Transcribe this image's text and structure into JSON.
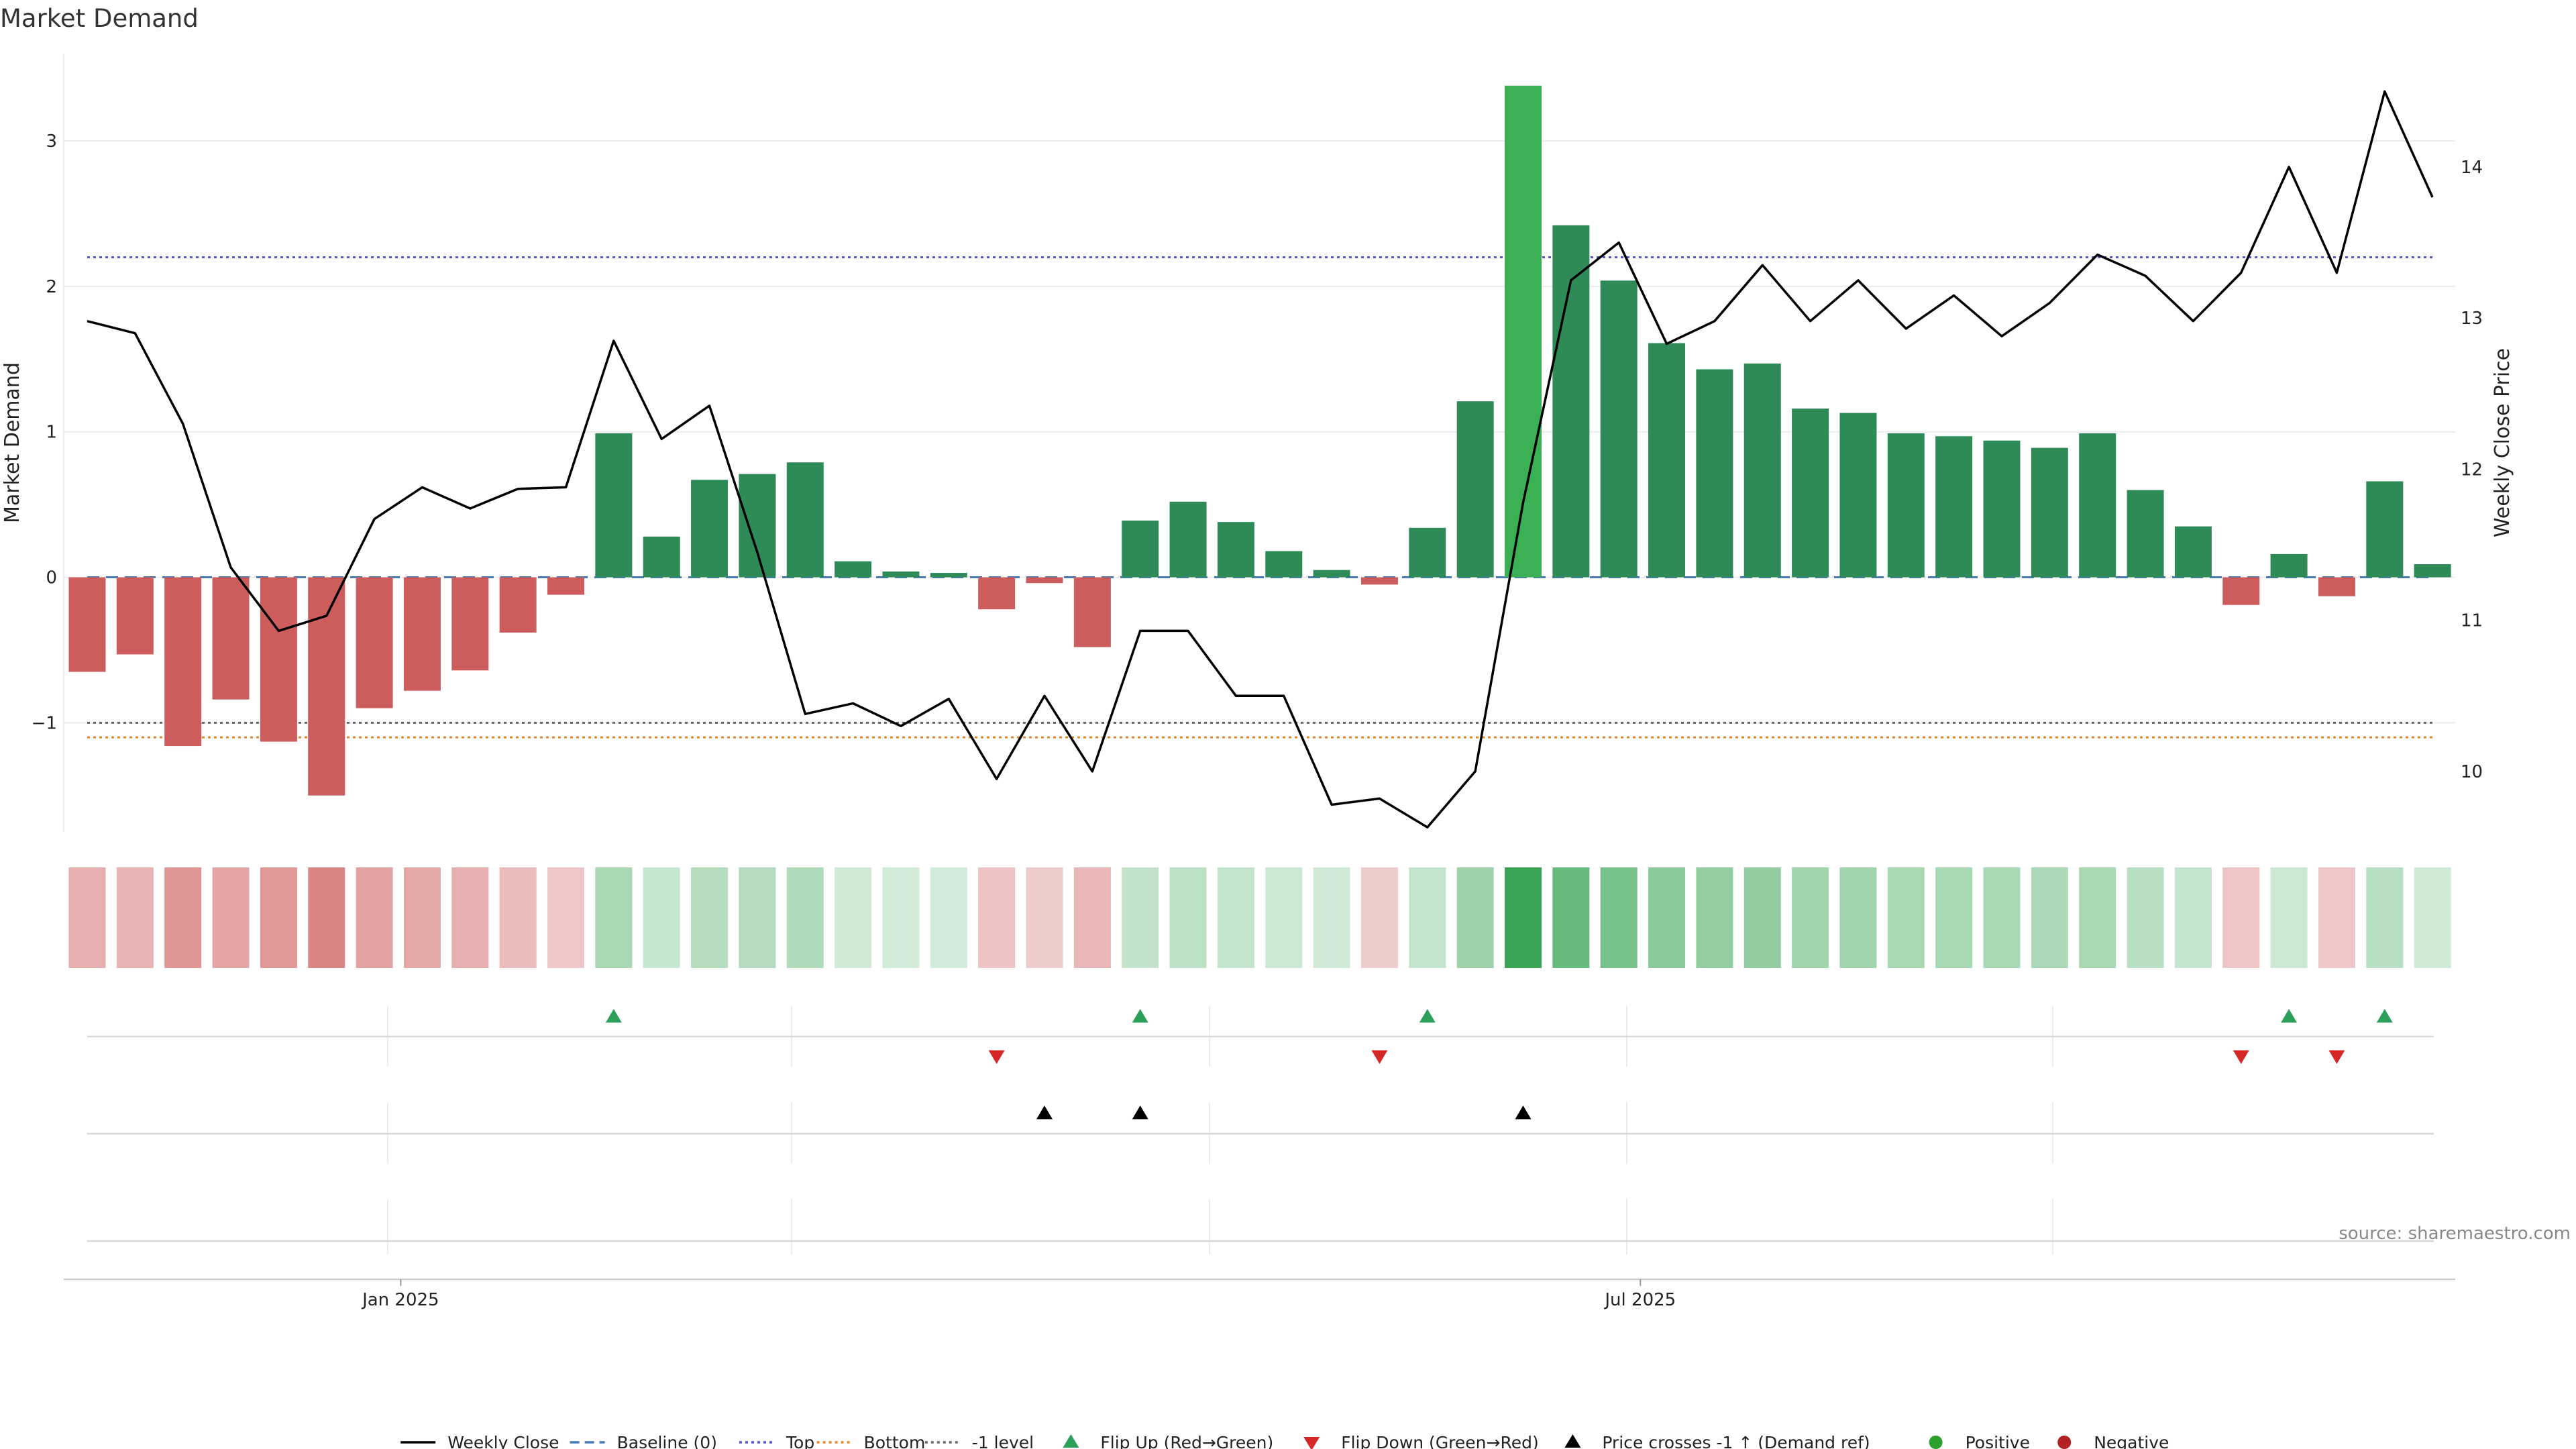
{
  "chart_data": {
    "type": "bar",
    "title": "Market Demand",
    "ylabel_left": "Market Demand",
    "ylabel_right": "Weekly Close Price",
    "source": "source: sharemaestro.com",
    "ylim_left": [
      -1.75,
      3.6
    ],
    "ylim_right": [
      9.6,
      14.75
    ],
    "left_ticks": [
      {
        "v": 3,
        "label": "3"
      },
      {
        "v": 2,
        "label": "2"
      },
      {
        "v": 1,
        "label": "1"
      },
      {
        "v": 0,
        "label": "0"
      },
      {
        "v": -1,
        "label": "−1"
      }
    ],
    "right_ticks": [
      {
        "v": 14,
        "label": "14"
      },
      {
        "v": 13,
        "label": "13"
      },
      {
        "v": 12,
        "label": "12"
      },
      {
        "v": 11,
        "label": "11"
      },
      {
        "v": 10,
        "label": "10"
      }
    ],
    "x_ticks": [
      {
        "index": 6.55,
        "label": "Jan 2025"
      },
      {
        "index": 32.45,
        "label": "Jul 2025"
      }
    ],
    "reference_lines": {
      "baseline": 0,
      "top": 2.2,
      "bottom": -1.1,
      "minus_one": -1
    },
    "demand": [
      -0.65,
      -0.53,
      -1.16,
      -0.84,
      -1.13,
      -1.5,
      -0.9,
      -0.78,
      -0.64,
      -0.38,
      -0.12,
      0.99,
      0.28,
      0.67,
      0.71,
      0.79,
      0.11,
      0.04,
      0.03,
      -0.22,
      -0.04,
      -0.48,
      0.39,
      0.52,
      0.38,
      0.18,
      0.05,
      -0.05,
      0.34,
      1.21,
      3.38,
      2.42,
      2.04,
      1.61,
      1.43,
      1.47,
      1.16,
      1.13,
      0.99,
      0.97,
      0.94,
      0.89,
      0.99,
      0.6,
      0.35,
      -0.19,
      0.16,
      -0.13,
      0.66,
      0.09
    ],
    "close": [
      12.98,
      12.9,
      12.3,
      11.35,
      10.93,
      11.03,
      11.67,
      11.88,
      11.74,
      11.87,
      11.88,
      12.85,
      12.2,
      12.42,
      11.45,
      10.38,
      10.45,
      10.3,
      10.48,
      9.95,
      10.5,
      10.0,
      10.93,
      10.93,
      10.5,
      10.5,
      9.78,
      9.82,
      9.63,
      10.0,
      11.78,
      13.25,
      13.5,
      12.83,
      12.98,
      13.35,
      12.98,
      13.25,
      12.93,
      13.15,
      12.88,
      13.1,
      13.42,
      13.28,
      12.98,
      13.3,
      14.0,
      13.3,
      14.5,
      13.8
    ],
    "flip_up_index": [
      11,
      22,
      28,
      46,
      48
    ],
    "flip_down_index": [
      19,
      27,
      45,
      47
    ],
    "price_cross_index": [
      20,
      22,
      30
    ],
    "legend": [
      {
        "label": "Weekly Close",
        "kind": "line-solid",
        "color": "#000000"
      },
      {
        "label": "Baseline (0)",
        "kind": "line-dash",
        "color": "#4a7ab5"
      },
      {
        "label": "Top",
        "kind": "line-dot",
        "color": "#5555cc"
      },
      {
        "label": "Bottom",
        "kind": "line-dot",
        "color": "#e08a2b"
      },
      {
        "label": "-1 level",
        "kind": "line-dot",
        "color": "#666666"
      },
      {
        "label": "Flip Up (Red→Green)",
        "kind": "tri-up",
        "color": "#2ca05a"
      },
      {
        "label": "Flip Down (Green→Red)",
        "kind": "tri-down",
        "color": "#d62728"
      },
      {
        "label": "Price crosses -1 ↑ (Demand ref)",
        "kind": "tri-up",
        "color": "#000000"
      },
      {
        "label": "Positive",
        "kind": "dot",
        "color": "#2ca02c"
      },
      {
        "label": "Negative",
        "kind": "dot",
        "color": "#b22222"
      }
    ],
    "colors": {
      "positive_bar": "#2e8b57",
      "negative_bar": "#cd5c5c",
      "highlight_bar": "#3cb054",
      "close_line": "#000000",
      "heat_positive": "#3aa655",
      "heat_negative": "#cd5c5c"
    }
  }
}
